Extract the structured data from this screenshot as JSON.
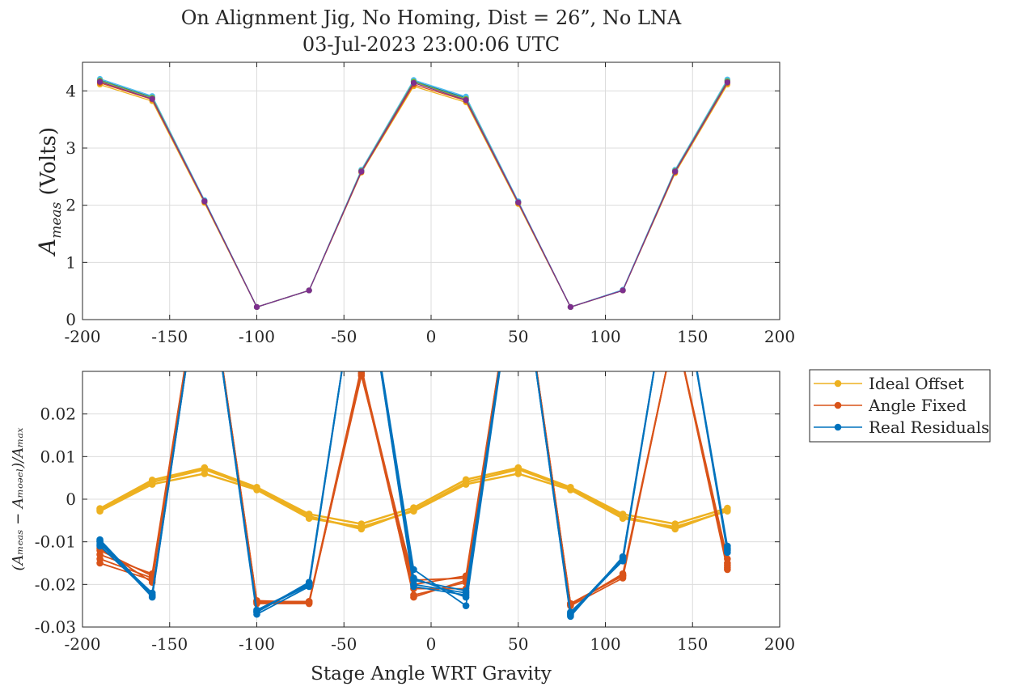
{
  "figure": {
    "title_line1": "On Alignment Jig, No Homing, Dist = 26”, No LNA",
    "title_line2": "03-Jul-2023 23:00:06 UTC"
  },
  "chart_data": [
    {
      "type": "line",
      "ylabel_main": "A",
      "ylabel_sub": "meas",
      "ylabel_rest": " (Volts)",
      "xlim": [
        -200,
        200
      ],
      "ylim": [
        0,
        4.5
      ],
      "xticks": [
        "-200",
        "-150",
        "-100",
        "-50",
        "0",
        "50",
        "100",
        "150",
        "200"
      ],
      "yticks": [
        "0",
        "1",
        "2",
        "3",
        "4"
      ],
      "ytick_values": [
        0,
        1,
        2,
        3,
        4
      ],
      "grid": true,
      "x": [
        -190,
        -160,
        -130,
        -100,
        -70,
        -40,
        -10,
        20,
        50,
        80,
        110,
        140,
        170
      ],
      "series": [
        {
          "color": "#EDB120",
          "values": [
            4.11,
            3.82,
            2.04,
            0.22,
            0.51,
            2.57,
            4.08,
            3.8,
            2.02,
            0.22,
            0.51,
            2.56,
            4.11
          ]
        },
        {
          "color": "#D95319",
          "values": [
            4.14,
            3.85,
            2.06,
            0.22,
            0.51,
            2.58,
            4.11,
            3.83,
            2.04,
            0.22,
            0.51,
            2.58,
            4.14
          ]
        },
        {
          "color": "#0072BD",
          "values": [
            4.19,
            3.89,
            2.08,
            0.22,
            0.51,
            2.61,
            4.17,
            3.88,
            2.06,
            0.22,
            0.52,
            2.61,
            4.18
          ]
        },
        {
          "color": "#4DBEEE",
          "values": [
            4.21,
            3.91,
            2.09,
            0.22,
            0.51,
            2.62,
            4.19,
            3.9,
            2.07,
            0.22,
            0.52,
            2.62,
            4.2
          ]
        },
        {
          "color": "#77AC30",
          "values": [
            4.18,
            3.88,
            2.07,
            0.22,
            0.51,
            2.6,
            4.16,
            3.86,
            2.05,
            0.22,
            0.51,
            2.6,
            4.17
          ]
        },
        {
          "color": "#7E2F8E",
          "values": [
            4.16,
            3.86,
            2.07,
            0.22,
            0.51,
            2.59,
            4.14,
            3.84,
            2.05,
            0.22,
            0.51,
            2.59,
            4.15
          ]
        }
      ]
    },
    {
      "type": "line",
      "xlabel": "Stage Angle WRT Gravity",
      "ylabel": "(Aₘₑₐₛ − Aₘₒₔₑₗ)/Aₘₐₓ",
      "xlim": [
        -200,
        200
      ],
      "ylim": [
        -0.03,
        0.03
      ],
      "xticks": [
        "-200",
        "-150",
        "-100",
        "-50",
        "0",
        "50",
        "100",
        "150",
        "200"
      ],
      "yticks": [
        "-0.03",
        "-0.02",
        "-0.01",
        "0",
        "0.01",
        "0.02"
      ],
      "ytick_values": [
        -0.03,
        -0.02,
        -0.01,
        0,
        0.01,
        0.02
      ],
      "grid": true,
      "legend": {
        "placement": "outside-right",
        "entries": [
          {
            "label": "Ideal Offset",
            "color": "#EDB120"
          },
          {
            "label": "Angle Fixed",
            "color": "#D95319"
          },
          {
            "label": "Real Residuals",
            "color": "#0072BD"
          }
        ]
      },
      "x": [
        -190,
        -160,
        -130,
        -100,
        -70,
        -40,
        -10,
        20,
        50,
        80,
        110,
        140,
        170
      ],
      "series": [
        {
          "name": "Ideal Offset",
          "color": "#EDB120",
          "width": 2.5,
          "values": [
            -0.0025,
            0.004,
            0.007,
            0.0025,
            -0.004,
            -0.007,
            -0.0025,
            0.004,
            0.007,
            0.0025,
            -0.004,
            -0.007,
            -0.0025
          ]
        },
        {
          "name": "Ideal Offset",
          "color": "#EDB120",
          "width": 2.5,
          "values": [
            -0.0022,
            0.0045,
            0.0074,
            0.0028,
            -0.0035,
            -0.0058,
            -0.002,
            0.0046,
            0.0074,
            0.0028,
            -0.0035,
            -0.0058,
            -0.0021
          ]
        },
        {
          "name": "Ideal Offset",
          "color": "#EDB120",
          "width": 2.5,
          "values": [
            -0.0028,
            0.0035,
            0.006,
            0.0022,
            -0.0045,
            -0.0065,
            -0.0028,
            0.0035,
            0.006,
            0.0022,
            -0.0045,
            -0.0065,
            -0.0028
          ]
        },
        {
          "name": "Angle Fixed",
          "color": "#D95319",
          "width": 1.8,
          "values": [
            -0.015,
            -0.019,
            0.06,
            -0.024,
            -0.024,
            0.031,
            -0.023,
            -0.019,
            0.06,
            -0.0245,
            -0.018,
            0.04,
            -0.0165
          ]
        },
        {
          "name": "Angle Fixed",
          "color": "#D95319",
          "width": 1.8,
          "values": [
            -0.014,
            -0.0185,
            0.06,
            -0.0245,
            -0.0245,
            0.03,
            -0.0225,
            -0.0195,
            0.06,
            -0.025,
            -0.0185,
            0.04,
            -0.016
          ]
        },
        {
          "name": "Angle Fixed",
          "color": "#D95319",
          "width": 1.8,
          "values": [
            -0.013,
            -0.0175,
            0.06,
            -0.024,
            -0.024,
            0.029,
            -0.019,
            -0.0185,
            0.06,
            -0.0248,
            -0.0175,
            0.04,
            -0.015
          ]
        },
        {
          "name": "Angle Fixed",
          "color": "#D95319",
          "width": 1.8,
          "values": [
            -0.012,
            -0.018,
            0.06,
            -0.0242,
            -0.0243,
            0.0295,
            -0.021,
            -0.021,
            0.06,
            -0.0245,
            -0.018,
            0.04,
            -0.014
          ]
        },
        {
          "name": "Angle Fixed",
          "color": "#D95319",
          "width": 1.8,
          "values": [
            -0.0115,
            -0.0195,
            0.06,
            -0.0238,
            -0.0242,
            0.0305,
            -0.02,
            -0.018,
            0.06,
            -0.0245,
            -0.0178,
            0.04,
            -0.0155
          ]
        },
        {
          "name": "Real Residuals",
          "color": "#0072BD",
          "width": 1.8,
          "values": [
            -0.0095,
            -0.0225,
            0.06,
            -0.0265,
            -0.0195,
            0.06,
            -0.0165,
            -0.025,
            0.06,
            -0.0275,
            -0.0135,
            0.06,
            -0.011
          ]
        },
        {
          "name": "Real Residuals",
          "color": "#0072BD",
          "width": 1.8,
          "values": [
            -0.01,
            -0.023,
            0.06,
            -0.027,
            -0.0205,
            0.06,
            -0.02,
            -0.022,
            0.06,
            -0.027,
            -0.014,
            0.06,
            -0.0115
          ]
        },
        {
          "name": "Real Residuals",
          "color": "#0072BD",
          "width": 1.8,
          "values": [
            -0.0105,
            -0.022,
            0.06,
            -0.026,
            -0.02,
            0.06,
            -0.0205,
            -0.0225,
            0.06,
            -0.0265,
            -0.0145,
            0.06,
            -0.012
          ]
        },
        {
          "name": "Real Residuals",
          "color": "#0072BD",
          "width": 1.8,
          "values": [
            -0.011,
            -0.0225,
            0.06,
            -0.0265,
            -0.0198,
            0.06,
            -0.019,
            -0.0215,
            0.06,
            -0.0268,
            -0.0138,
            0.06,
            -0.0125
          ]
        },
        {
          "name": "Real Residuals",
          "color": "#0072BD",
          "width": 1.8,
          "values": [
            -0.0098,
            -0.0228,
            0.06,
            -0.0262,
            -0.0202,
            0.06,
            -0.0185,
            -0.023,
            0.06,
            -0.0272,
            -0.0142,
            0.06,
            -0.0118
          ]
        }
      ]
    }
  ]
}
